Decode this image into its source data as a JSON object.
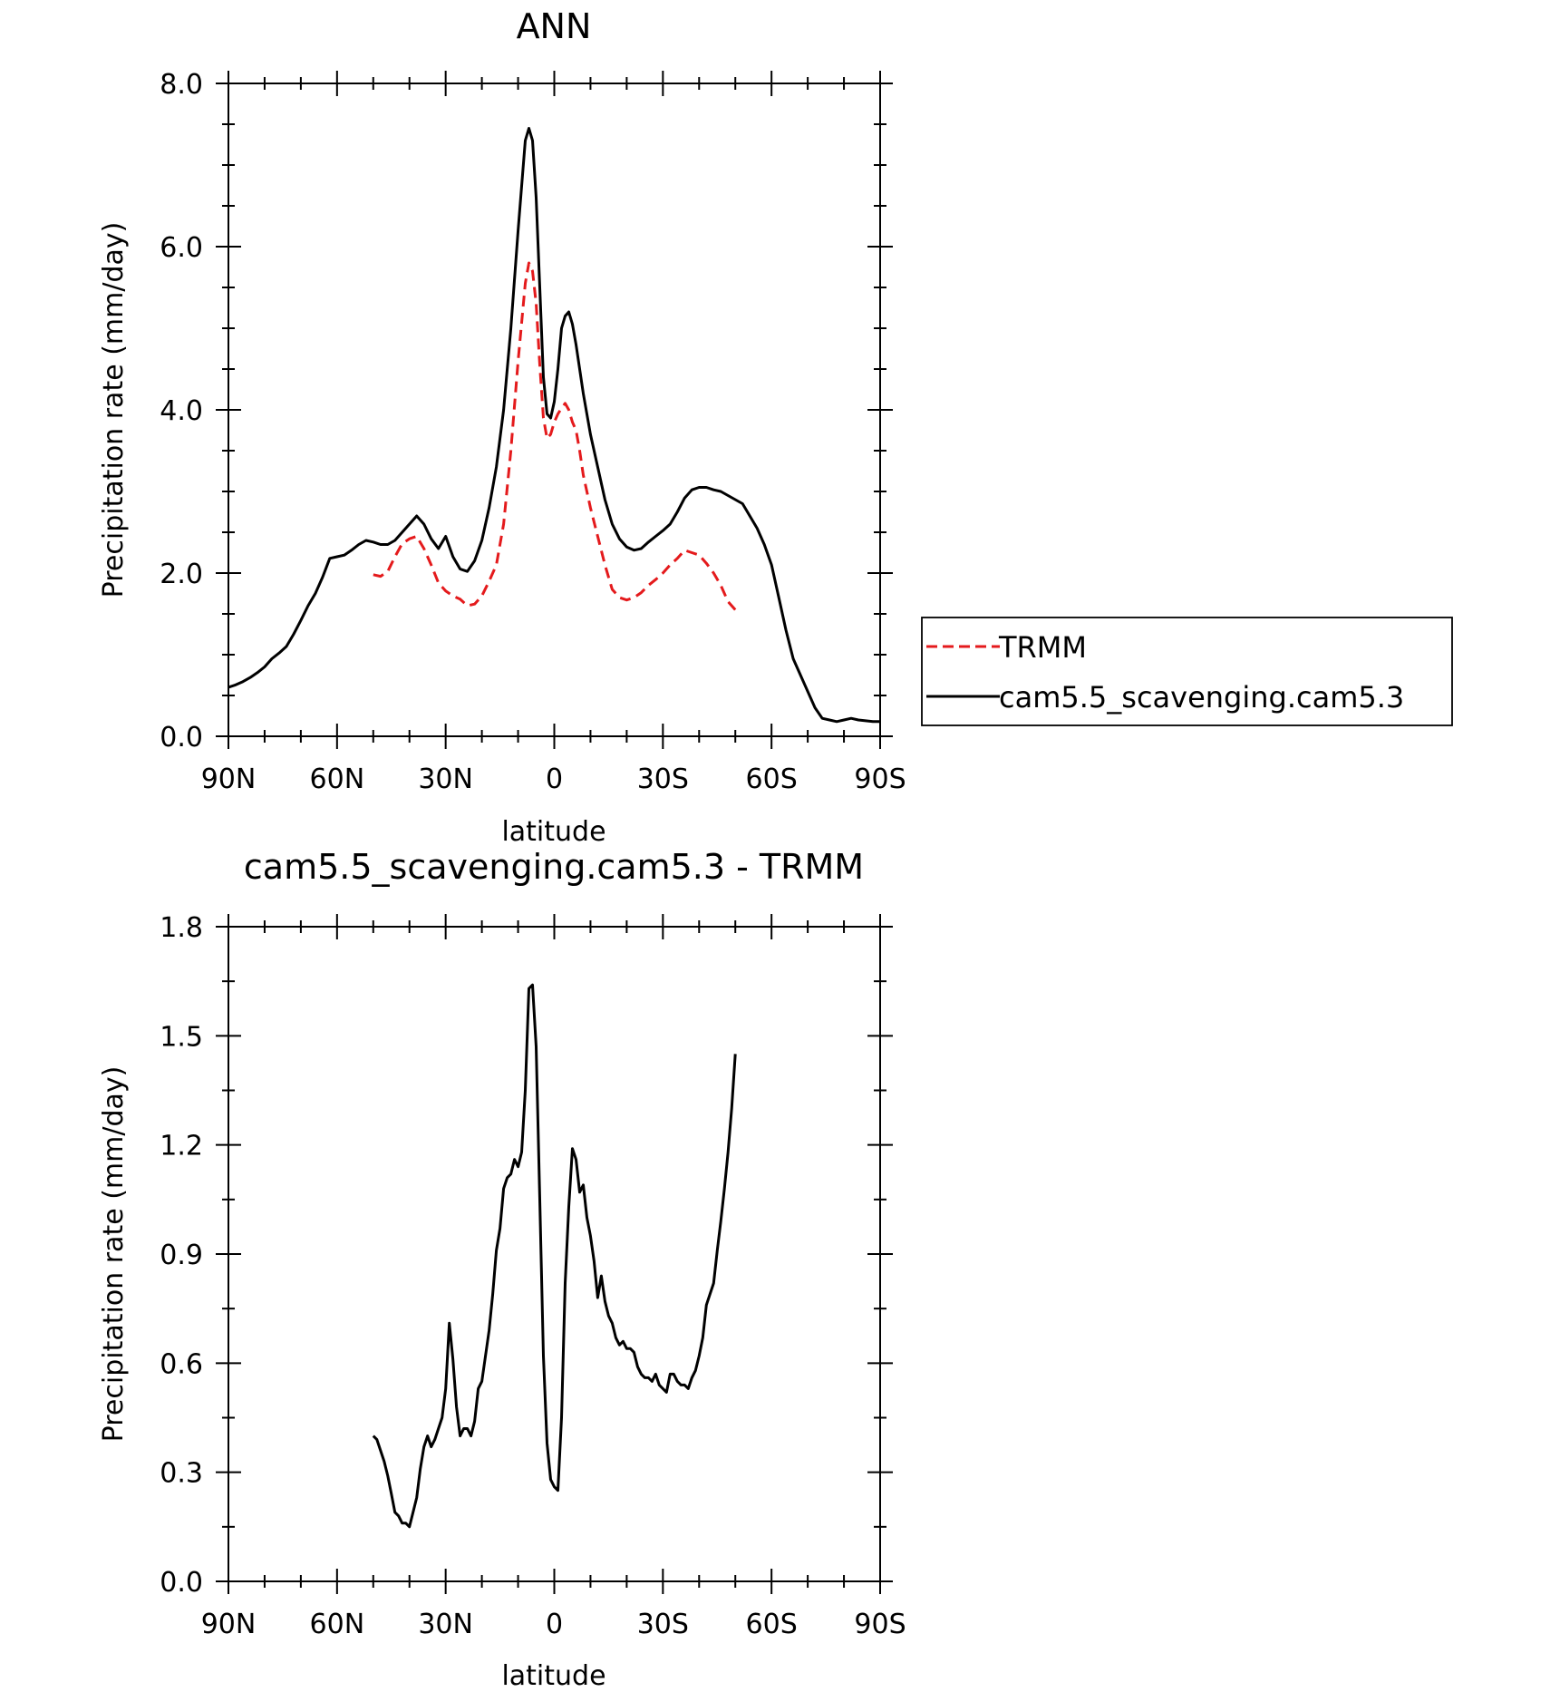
{
  "chart_data": [
    {
      "type": "line",
      "title": "ANN",
      "xlabel": "latitude",
      "ylabel": "Precipitation rate (mm/day)",
      "xlim": [
        90,
        -90
      ],
      "ylim": [
        0,
        8
      ],
      "x_ticks": [
        90,
        60,
        30,
        0,
        -30,
        -60,
        -90
      ],
      "x_tick_labels": [
        "90N",
        "60N",
        "30N",
        "0",
        "30S",
        "60S",
        "90S"
      ],
      "y_ticks": [
        0,
        2,
        4,
        6,
        8
      ],
      "y_tick_labels": [
        "0.0",
        "2.0",
        "4.0",
        "6.0",
        "8.0"
      ],
      "legend": "right",
      "series": [
        {
          "name": "TRMM",
          "color": "#e41a1c",
          "dash": "dashed",
          "x": [
            50,
            48,
            46,
            44,
            42,
            40,
            38,
            36,
            34,
            32,
            30,
            28,
            26,
            24,
            22,
            20,
            18,
            16,
            14,
            12,
            10,
            8,
            7,
            6,
            5,
            4,
            3,
            2,
            1,
            0,
            -1,
            -2,
            -3,
            -4,
            -5,
            -6,
            -7,
            -8,
            -10,
            -12,
            -14,
            -16,
            -18,
            -20,
            -22,
            -24,
            -26,
            -28,
            -30,
            -32,
            -34,
            -36,
            -38,
            -40,
            -42,
            -44,
            -46,
            -48,
            -50
          ],
          "values": [
            1.98,
            1.96,
            2.02,
            2.2,
            2.36,
            2.42,
            2.45,
            2.3,
            2.1,
            1.88,
            1.78,
            1.72,
            1.68,
            1.6,
            1.62,
            1.72,
            1.9,
            2.1,
            2.6,
            3.5,
            4.6,
            5.55,
            5.8,
            5.7,
            5.3,
            4.55,
            3.9,
            3.65,
            3.7,
            3.85,
            3.95,
            4.02,
            4.08,
            4.0,
            3.85,
            3.75,
            3.5,
            3.2,
            2.8,
            2.45,
            2.1,
            1.8,
            1.7,
            1.67,
            1.7,
            1.76,
            1.85,
            1.92,
            2.0,
            2.1,
            2.18,
            2.28,
            2.25,
            2.22,
            2.12,
            2.0,
            1.85,
            1.65,
            1.55
          ]
        },
        {
          "name": "cam5.5_scavenging.cam5.3",
          "color": "#000000",
          "dash": "solid",
          "x": [
            90,
            88,
            86,
            84,
            82,
            80,
            78,
            76,
            74,
            72,
            70,
            68,
            66,
            64,
            62,
            60,
            58,
            56,
            54,
            52,
            50,
            48,
            46,
            44,
            42,
            40,
            38,
            36,
            34,
            32,
            30,
            28,
            26,
            24,
            22,
            20,
            18,
            16,
            14,
            12,
            10,
            8,
            7,
            6,
            5,
            4,
            3,
            2,
            1,
            0,
            -1,
            -2,
            -3,
            -4,
            -5,
            -6,
            -7,
            -8,
            -10,
            -12,
            -14,
            -16,
            -18,
            -20,
            -22,
            -24,
            -26,
            -28,
            -30,
            -32,
            -34,
            -36,
            -38,
            -40,
            -42,
            -44,
            -46,
            -48,
            -50,
            -52,
            -54,
            -56,
            -58,
            -60,
            -62,
            -64,
            -66,
            -68,
            -70,
            -72,
            -74,
            -76,
            -78,
            -80,
            -82,
            -84,
            -86,
            -88,
            -90
          ],
          "values": [
            0.6,
            0.63,
            0.67,
            0.72,
            0.78,
            0.85,
            0.95,
            1.02,
            1.1,
            1.25,
            1.42,
            1.6,
            1.75,
            1.95,
            2.18,
            2.2,
            2.22,
            2.28,
            2.35,
            2.4,
            2.38,
            2.35,
            2.35,
            2.4,
            2.5,
            2.6,
            2.7,
            2.6,
            2.42,
            2.3,
            2.45,
            2.2,
            2.05,
            2.02,
            2.15,
            2.4,
            2.8,
            3.3,
            4.0,
            5.0,
            6.2,
            7.3,
            7.45,
            7.3,
            6.6,
            5.5,
            4.4,
            3.95,
            3.9,
            4.1,
            4.5,
            5.0,
            5.15,
            5.2,
            5.05,
            4.8,
            4.5,
            4.2,
            3.7,
            3.3,
            2.9,
            2.6,
            2.42,
            2.32,
            2.28,
            2.3,
            2.38,
            2.45,
            2.52,
            2.6,
            2.75,
            2.92,
            3.02,
            3.05,
            3.05,
            3.02,
            3.0,
            2.95,
            2.9,
            2.85,
            2.7,
            2.55,
            2.35,
            2.1,
            1.7,
            1.3,
            0.95,
            0.75,
            0.55,
            0.35,
            0.22,
            0.2,
            0.18,
            0.2,
            0.22,
            0.2,
            0.19,
            0.18,
            0.18
          ]
        }
      ]
    },
    {
      "type": "line",
      "title": "cam5.5_scavenging.cam5.3 - TRMM",
      "xlabel": "latitude",
      "ylabel": "Precipitation rate (mm/day)",
      "xlim": [
        90,
        -90
      ],
      "ylim": [
        0,
        1.8
      ],
      "x_ticks": [
        90,
        60,
        30,
        0,
        -30,
        -60,
        -90
      ],
      "x_tick_labels": [
        "90N",
        "60N",
        "30N",
        "0",
        "30S",
        "60S",
        "90S"
      ],
      "y_ticks": [
        0,
        0.3,
        0.6,
        0.9,
        1.2,
        1.5,
        1.8
      ],
      "y_tick_labels": [
        "0.0",
        "0.3",
        "0.6",
        "0.9",
        "1.2",
        "1.5",
        "1.8"
      ],
      "series": [
        {
          "color": "#000000",
          "dash": "solid",
          "x": [
            50,
            49,
            48,
            47,
            46,
            45,
            44,
            43,
            42,
            41,
            40,
            39,
            38,
            37,
            36,
            35,
            34,
            33,
            32,
            31,
            30,
            29,
            28,
            27,
            26,
            25,
            24,
            23,
            22,
            21,
            20,
            19,
            18,
            17,
            16,
            15,
            14,
            13,
            12,
            11,
            10,
            9,
            8,
            7,
            6,
            5,
            4,
            3,
            2,
            1,
            0,
            -1,
            -2,
            -3,
            -4,
            -5,
            -6,
            -7,
            -8,
            -9,
            -10,
            -11,
            -12,
            -13,
            -14,
            -15,
            -16,
            -17,
            -18,
            -19,
            -20,
            -21,
            -22,
            -23,
            -24,
            -25,
            -26,
            -27,
            -28,
            -29,
            -30,
            -31,
            -32,
            -33,
            -34,
            -35,
            -36,
            -37,
            -38,
            -39,
            -40,
            -41,
            -42,
            -43,
            -44,
            -45,
            -46,
            -47,
            -48,
            -49,
            -50
          ],
          "values": [
            0.4,
            0.39,
            0.36,
            0.33,
            0.29,
            0.24,
            0.19,
            0.18,
            0.16,
            0.16,
            0.15,
            0.19,
            0.23,
            0.31,
            0.37,
            0.4,
            0.37,
            0.39,
            0.42,
            0.45,
            0.53,
            0.71,
            0.61,
            0.48,
            0.4,
            0.42,
            0.42,
            0.4,
            0.44,
            0.53,
            0.55,
            0.62,
            0.69,
            0.79,
            0.91,
            0.97,
            1.08,
            1.11,
            1.12,
            1.16,
            1.14,
            1.18,
            1.35,
            1.63,
            1.64,
            1.47,
            1.05,
            0.62,
            0.38,
            0.28,
            0.26,
            0.25,
            0.45,
            0.82,
            1.03,
            1.19,
            1.16,
            1.07,
            1.09,
            1.0,
            0.95,
            0.88,
            0.78,
            0.84,
            0.77,
            0.73,
            0.71,
            0.67,
            0.65,
            0.66,
            0.64,
            0.64,
            0.63,
            0.59,
            0.57,
            0.56,
            0.56,
            0.55,
            0.57,
            0.54,
            0.53,
            0.52,
            0.57,
            0.57,
            0.55,
            0.54,
            0.54,
            0.53,
            0.56,
            0.58,
            0.62,
            0.67,
            0.76,
            0.79,
            0.82,
            0.91,
            0.99,
            1.08,
            1.18,
            1.3,
            1.45
          ]
        }
      ]
    }
  ]
}
